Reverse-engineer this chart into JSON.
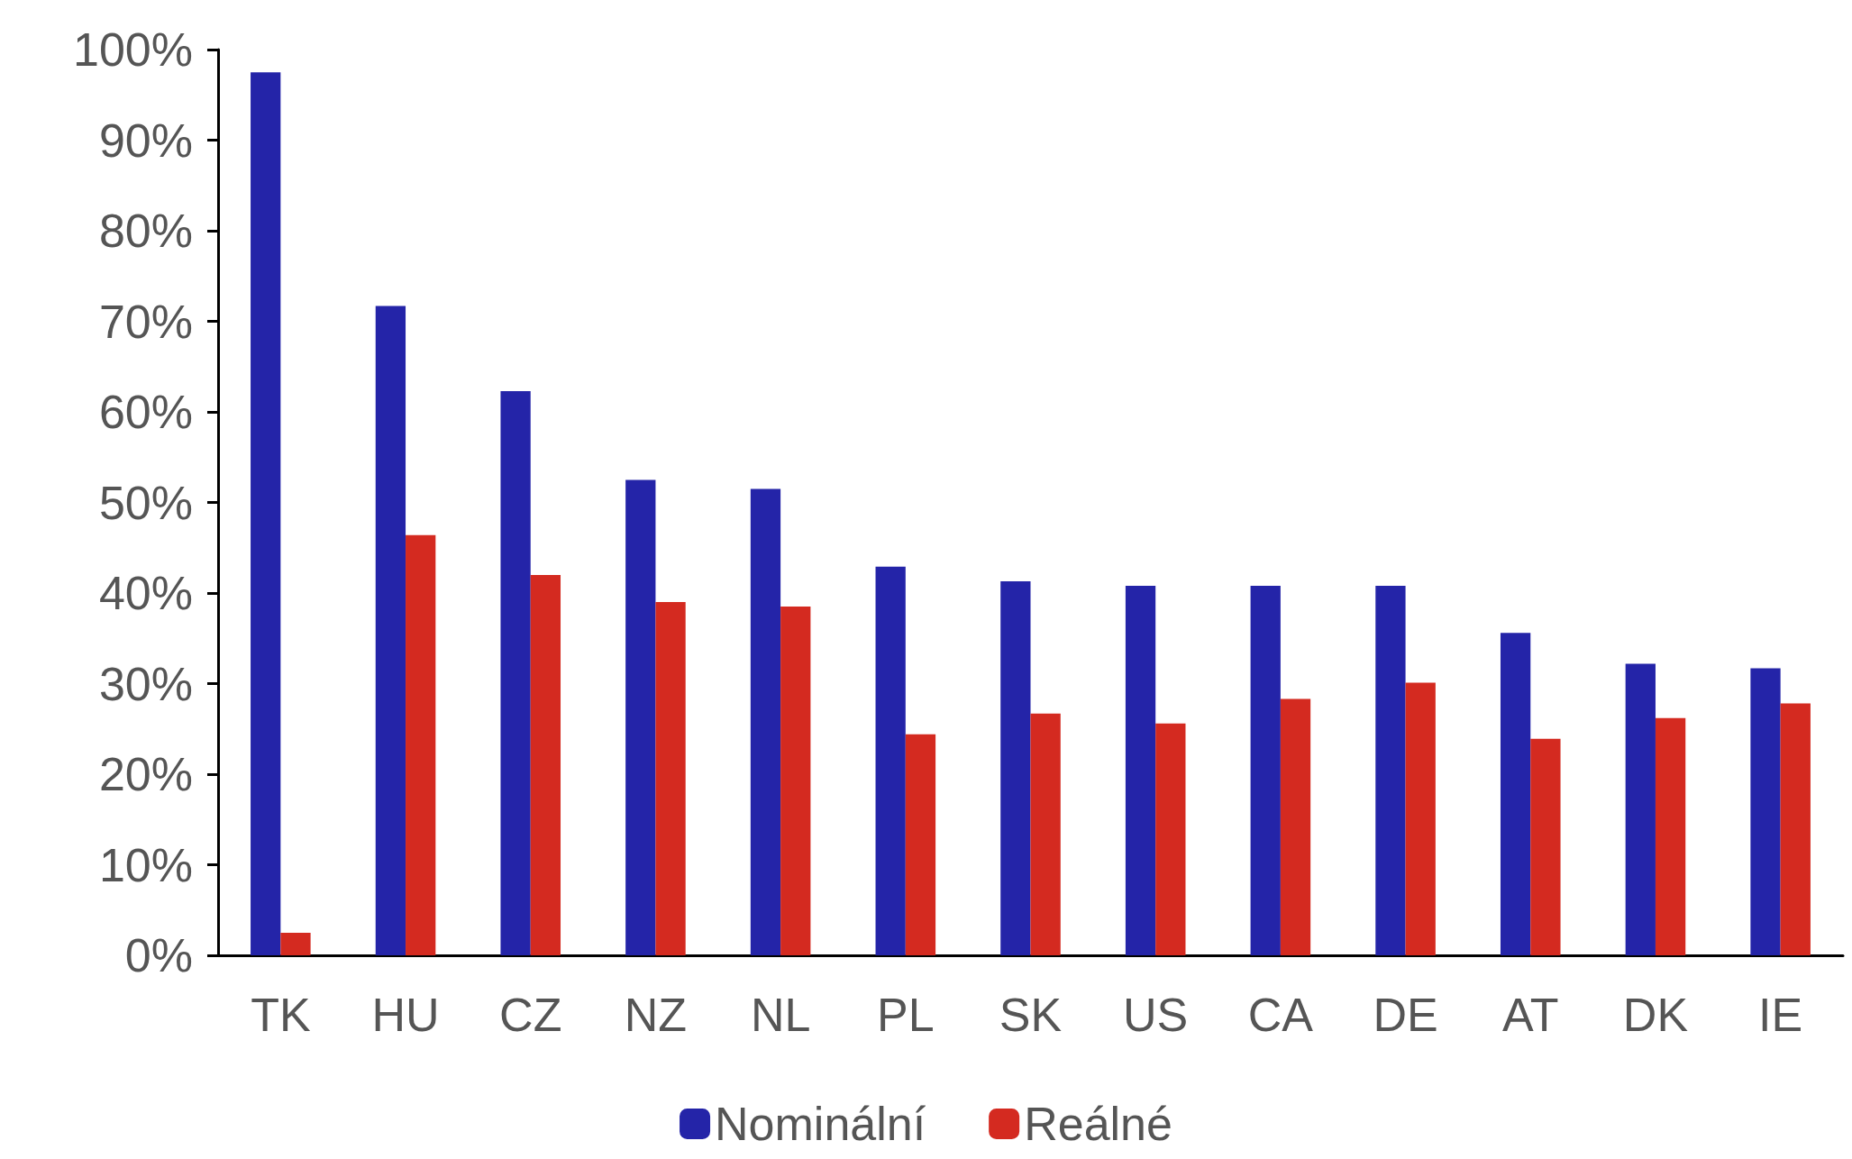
{
  "chart_data": {
    "type": "bar",
    "categories": [
      "TK",
      "HU",
      "CZ",
      "NZ",
      "NL",
      "PL",
      "SK",
      "US",
      "CA",
      "DE",
      "AT",
      "DK",
      "IE"
    ],
    "series": [
      {
        "name": "Nominální",
        "color": "#2424a8",
        "values": [
          97.5,
          71.7,
          62.3,
          52.5,
          51.5,
          42.9,
          41.3,
          40.8,
          40.8,
          40.8,
          35.6,
          32.2,
          31.7
        ]
      },
      {
        "name": "Reálné",
        "color": "#d42a20",
        "values": [
          2.5,
          46.4,
          42.0,
          39.0,
          38.5,
          24.4,
          26.7,
          25.6,
          28.3,
          30.1,
          23.9,
          26.2,
          27.8
        ]
      }
    ],
    "ylim": [
      0,
      100
    ],
    "yticks": [
      {
        "value": 0,
        "label": "0%"
      },
      {
        "value": 10,
        "label": "10%"
      },
      {
        "value": 20,
        "label": "20%"
      },
      {
        "value": 30,
        "label": "30%"
      },
      {
        "value": 40,
        "label": "40%"
      },
      {
        "value": 50,
        "label": "50%"
      },
      {
        "value": 60,
        "label": "60%"
      },
      {
        "value": 70,
        "label": "70%"
      },
      {
        "value": 80,
        "label": "80%"
      },
      {
        "value": 90,
        "label": "90%"
      },
      {
        "value": 100,
        "label": "100%"
      }
    ],
    "grid": false,
    "legend": "bottom"
  }
}
